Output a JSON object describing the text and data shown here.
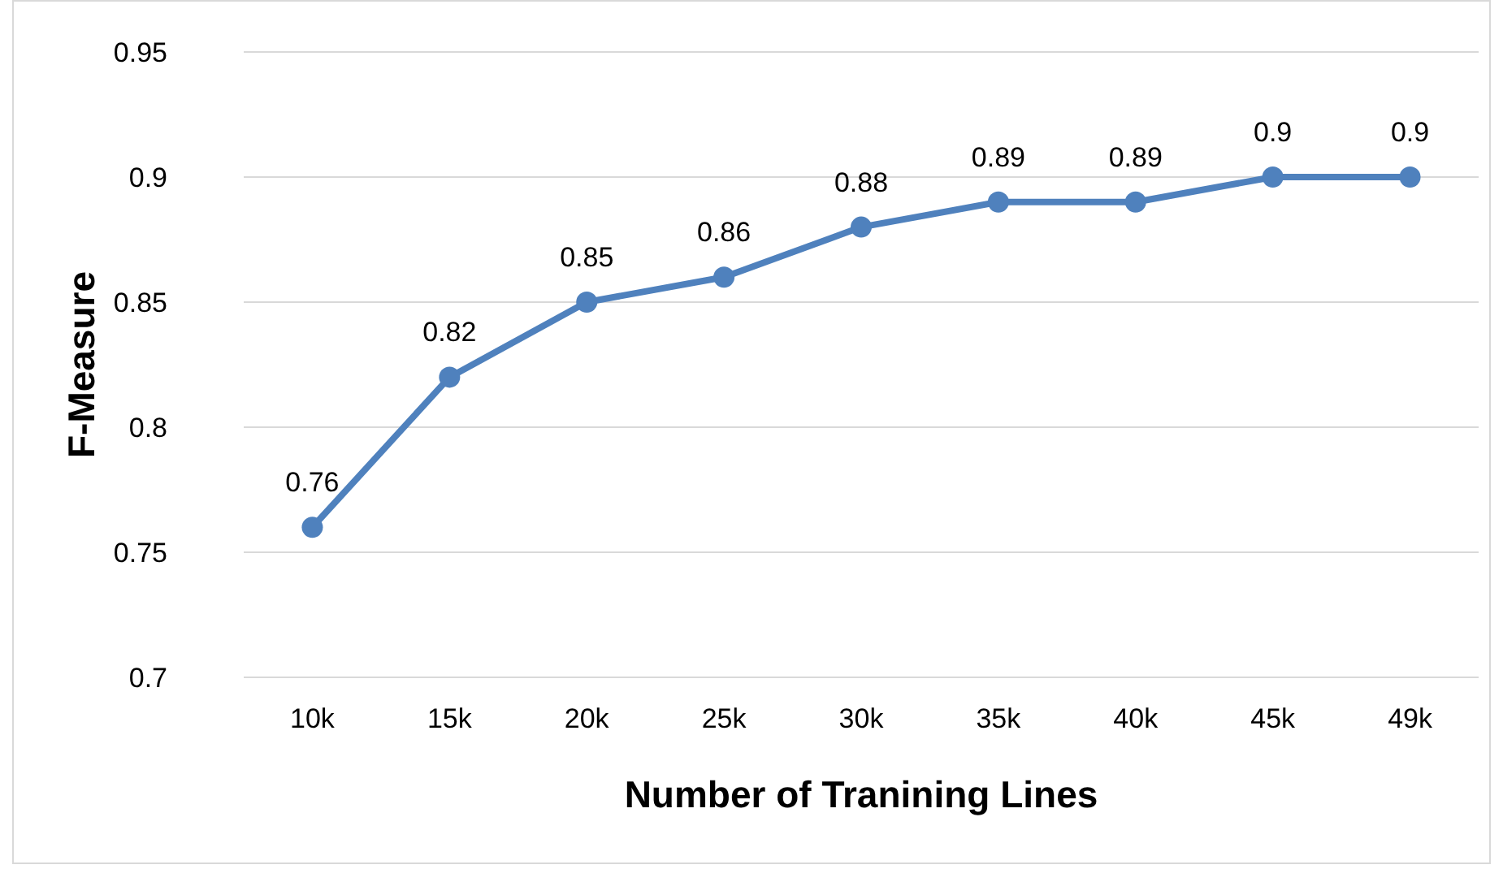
{
  "chart_data": {
    "type": "line",
    "xlabel": "Number of Tranining Lines",
    "ylabel": "F-Measure",
    "categories": [
      "10k",
      "15k",
      "20k",
      "25k",
      "30k",
      "35k",
      "40k",
      "45k",
      "49k"
    ],
    "series": [
      {
        "color": "#4f81bd",
        "values": [
          0.76,
          0.82,
          0.85,
          0.86,
          0.88,
          0.89,
          0.89,
          0.9,
          0.9
        ]
      }
    ],
    "ylim": [
      0.7,
      0.95
    ],
    "yticks": [
      0.7,
      0.75,
      0.8,
      0.85,
      0.9,
      0.95
    ],
    "grid": "y",
    "marker": "circle",
    "line_style": "solid",
    "data_labels": true
  }
}
